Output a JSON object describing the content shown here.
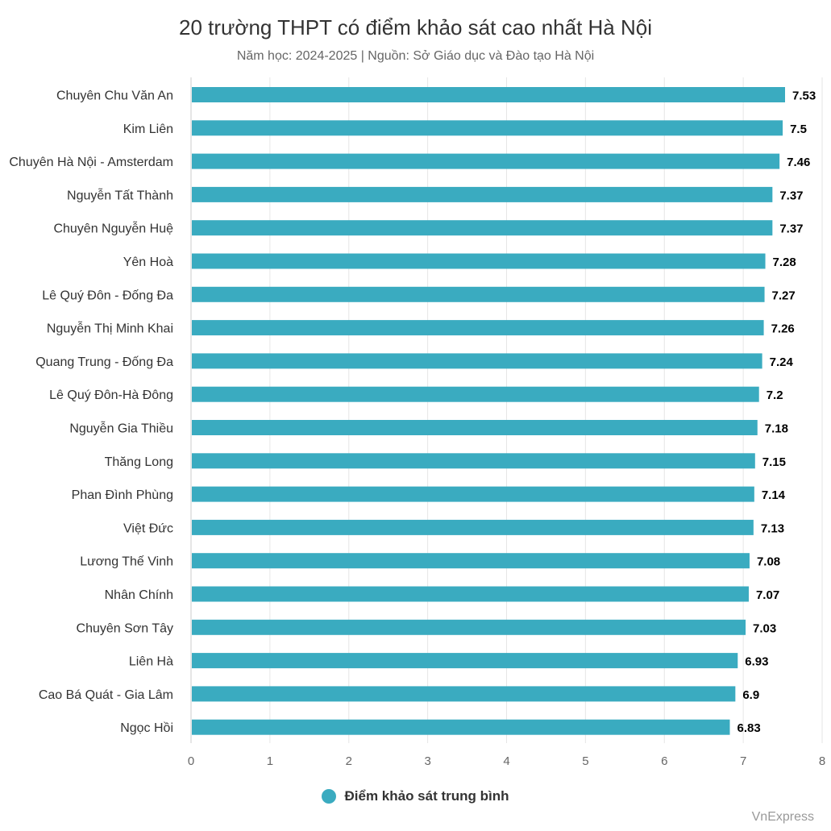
{
  "colors": {
    "bar": "#3aabc0",
    "grid": "#e6e6e6",
    "axis_text": "#666666",
    "label_text": "#333333",
    "value_text": "#000000"
  },
  "credit": "VnExpress",
  "chart_data": {
    "type": "bar",
    "orientation": "horizontal",
    "title": "20 trường THPT có điểm khảo sát cao nhất Hà Nội",
    "subtitle": "Năm học: 2024-2025 | Nguồn: Sở Giáo dục và Đào tạo Hà Nội",
    "categories": [
      "Chuyên Chu Văn An",
      "Kim Liên",
      "Chuyên Hà Nội - Amsterdam",
      "Nguyễn Tất Thành",
      "Chuyên Nguyễn Huệ",
      "Yên Hoà",
      "Lê Quý Đôn - Đống Đa",
      "Nguyễn Thị Minh Khai",
      "Quang Trung - Đống Đa",
      "Lê Quý Đôn-Hà Đông",
      "Nguyễn Gia Thiều",
      "Thăng Long",
      "Phan Đình Phùng",
      "Việt Đức",
      "Lương Thế Vinh",
      "Nhân Chính",
      "Chuyên Sơn Tây",
      "Liên Hà",
      "Cao Bá Quát - Gia Lâm",
      "Ngọc Hồi"
    ],
    "series": [
      {
        "name": "Điểm khảo sát trung bình",
        "values": [
          7.53,
          7.5,
          7.46,
          7.37,
          7.37,
          7.28,
          7.27,
          7.26,
          7.24,
          7.2,
          7.18,
          7.15,
          7.14,
          7.13,
          7.08,
          7.07,
          7.03,
          6.93,
          6.9,
          6.83
        ]
      }
    ],
    "xlim": [
      0,
      8
    ],
    "xticks": [
      "0",
      "1",
      "2",
      "3",
      "4",
      "5",
      "6",
      "7",
      "8"
    ],
    "grid": true,
    "legend": "bottom-center",
    "data_labels": true
  }
}
